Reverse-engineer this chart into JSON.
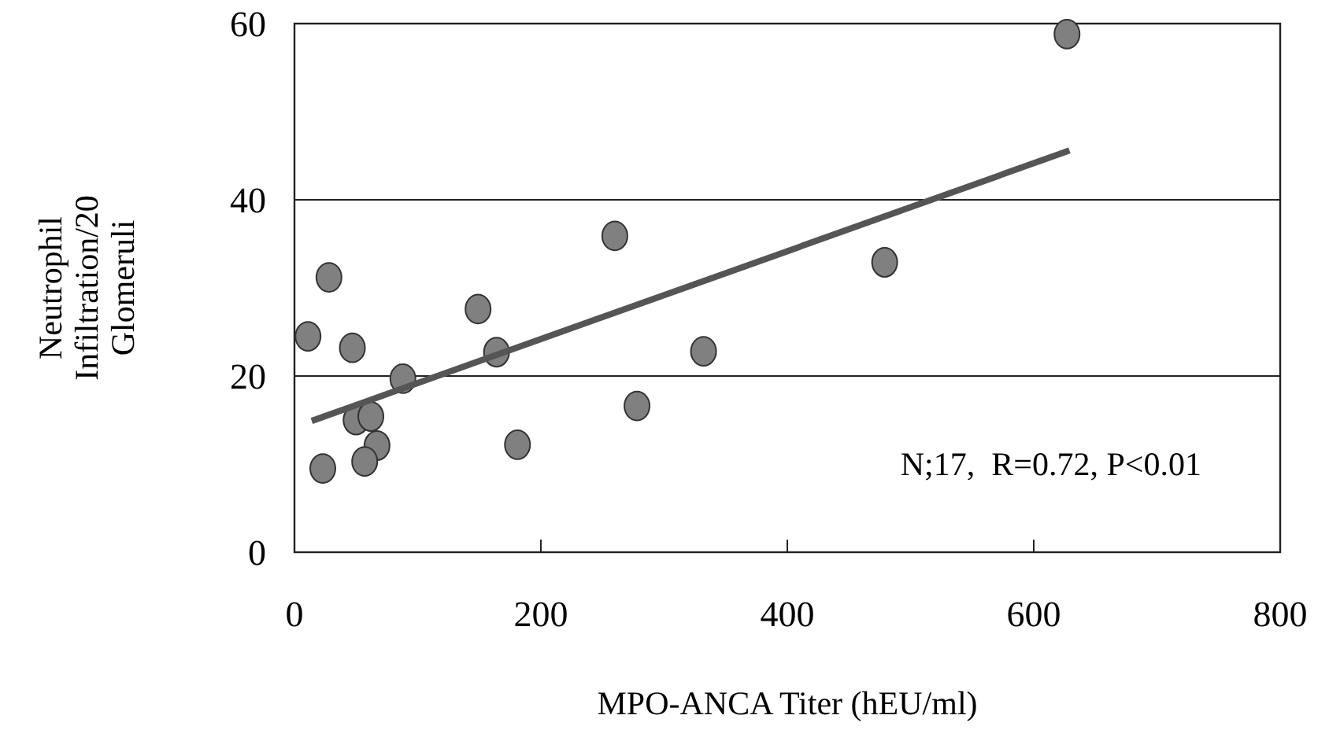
{
  "chart_data": {
    "type": "scatter",
    "xlabel": "MPO-ANCA Titer (hEU/ml)",
    "ylabel": "Neutrophil Infiltration/20 Glomeruli",
    "xlim": [
      0,
      800
    ],
    "xticks": [
      0,
      200,
      400,
      600,
      800
    ],
    "ylim": [
      0,
      60
    ],
    "yticks": [
      0,
      20,
      40,
      60
    ],
    "grid": "y",
    "annotations": [
      "N;17,  R=0.72, P<0.01"
    ],
    "series": [
      {
        "marker": "circle",
        "color": "#808080",
        "x": [
          11,
          28,
          47,
          23,
          88,
          50,
          62,
          67,
          57,
          149,
          164,
          181,
          260,
          278,
          332,
          479,
          627
        ],
        "values": [
          24.5,
          31.2,
          23.2,
          9.5,
          19.7,
          15.0,
          15.4,
          12.1,
          10.3,
          27.6,
          22.7,
          12.2,
          35.9,
          16.6,
          22.8,
          32.9,
          58.8
        ]
      },
      {
        "type": "line",
        "color": "#555555",
        "line_style": "solid",
        "x": [
          14,
          629
        ],
        "values": [
          14.9,
          45.6
        ]
      }
    ]
  }
}
